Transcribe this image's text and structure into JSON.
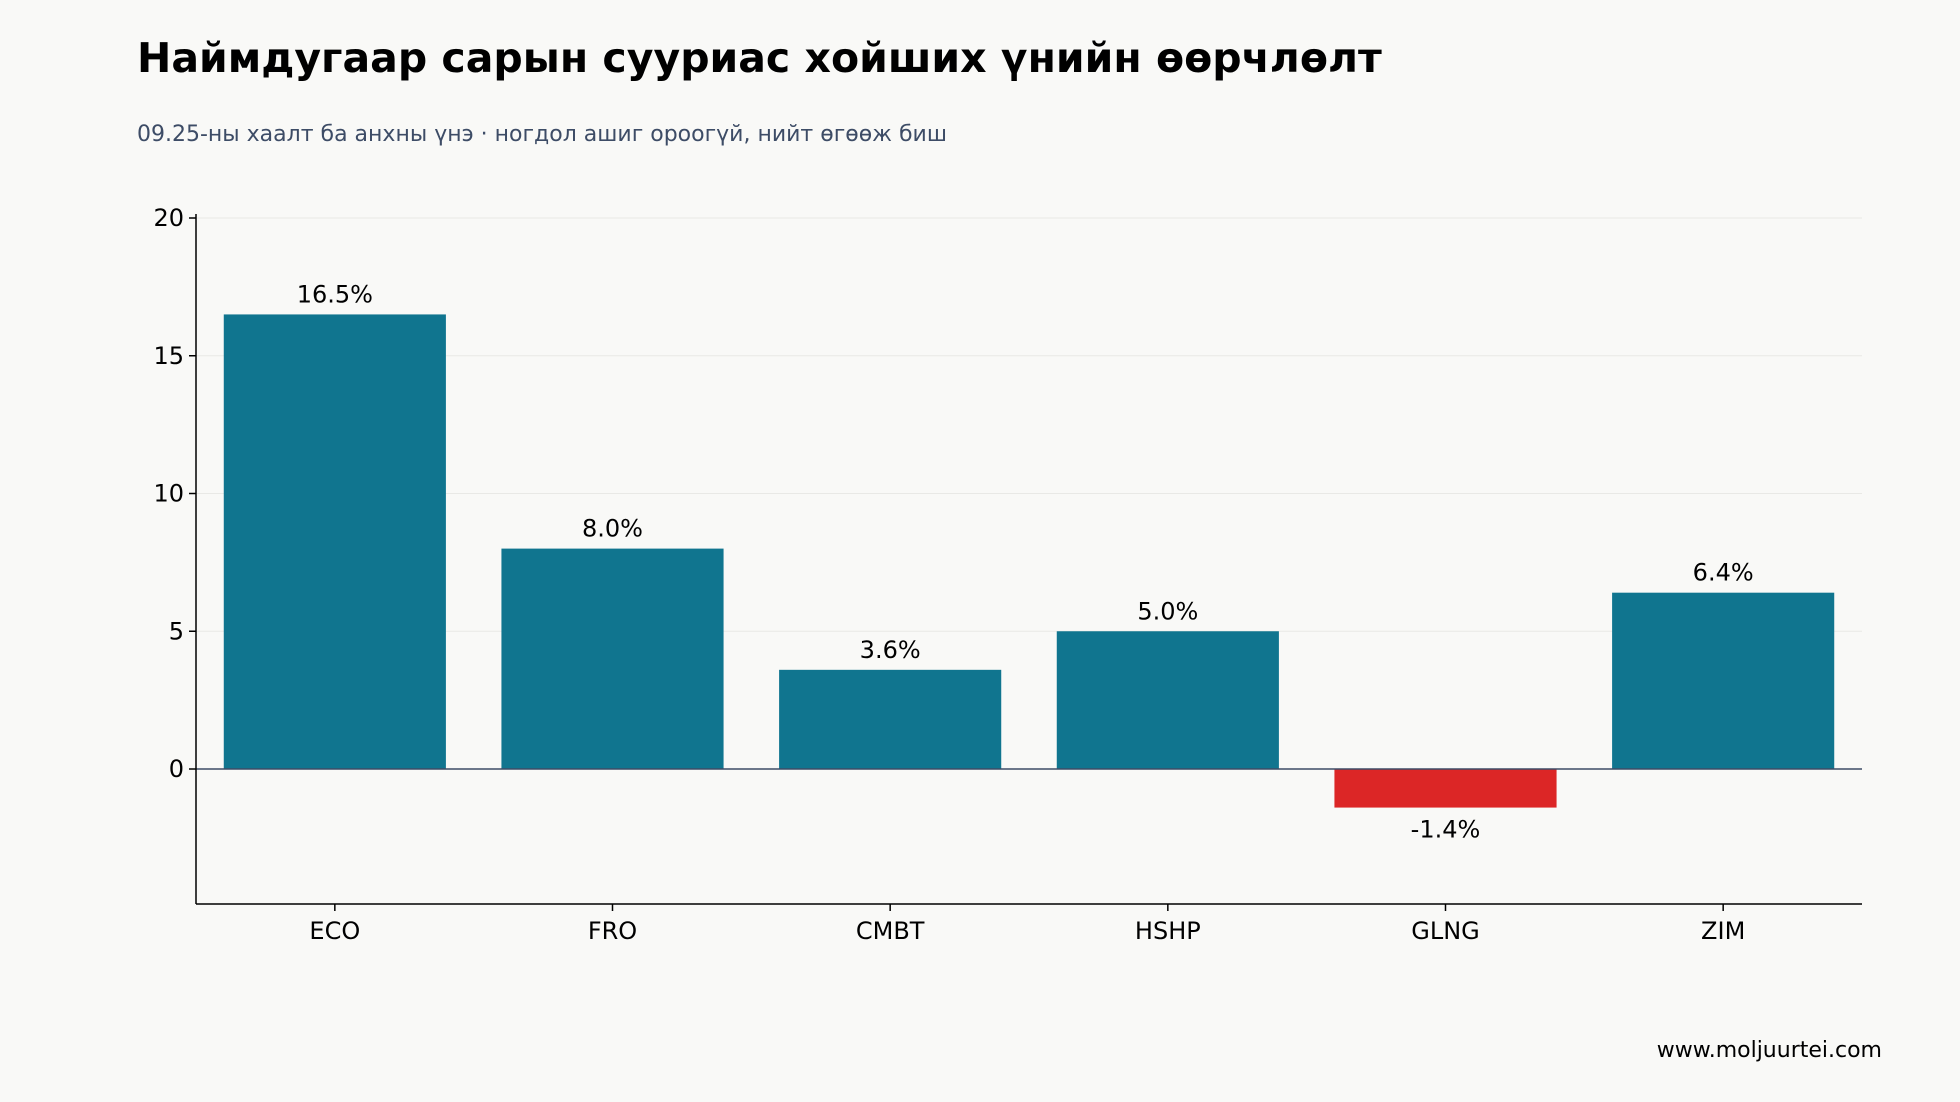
{
  "header": {
    "title": "Наймдугаар сарын сууриас хойших үнийн өөрчлөлт",
    "subtitle": "09.25-ны хаалт ба анхны үнэ · ногдол ашиг ороогүй, нийт өгөөж биш"
  },
  "footer": {
    "source": "www.moljuurtei.com"
  },
  "colors": {
    "positive": "#10758f",
    "negative": "#dc2626",
    "grid": "#e9e9e6",
    "axis": "#000000",
    "zero_line": "#3d4c66"
  },
  "chart_data": {
    "type": "bar",
    "categories": [
      "ECO",
      "FRO",
      "CMBT",
      "HSHP",
      "GLNG",
      "ZIM"
    ],
    "values": [
      16.5,
      8.0,
      3.6,
      5.0,
      -1.4,
      6.4
    ],
    "data_labels": [
      "16.5%",
      "8.0%",
      "3.6%",
      "5.0%",
      "-1.4%",
      "6.4%"
    ],
    "yticks": [
      0,
      5,
      10,
      15,
      20
    ],
    "ylim": [
      -4.9,
      20
    ],
    "grid": "horizontal",
    "xlabel": "",
    "ylabel": ""
  }
}
